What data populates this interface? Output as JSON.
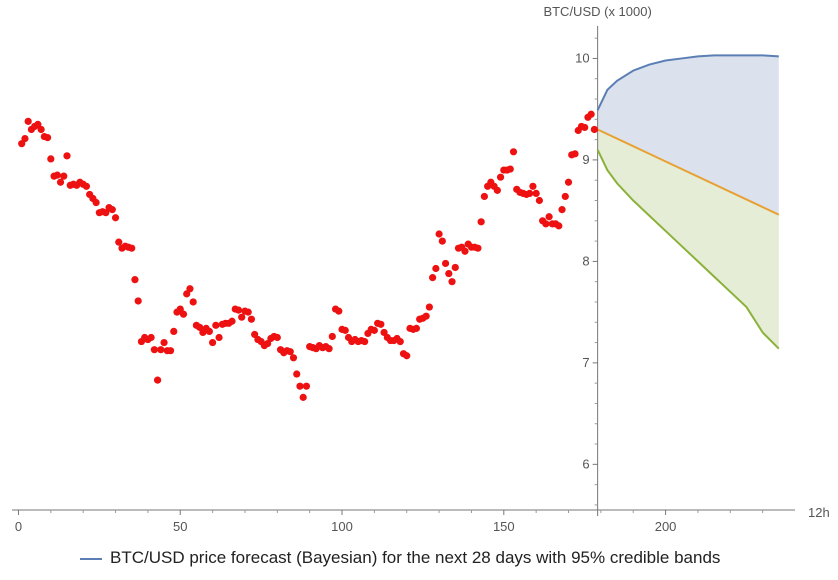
{
  "chart_data": {
    "type": "scatter",
    "title": "",
    "xlabel": "12h",
    "ylabel": "BTC/USD (x 1000)",
    "xlim": [
      -2,
      240
    ],
    "ylim": [
      5.55,
      10.3
    ],
    "grid": false,
    "legend_position": "bottom",
    "x_ticks": [
      0,
      50,
      100,
      150,
      200
    ],
    "y_ticks": [
      6,
      7,
      8,
      9,
      10
    ],
    "legend": [
      {
        "label": "BTC/USD price forecast (Bayesian) for the next 28 days with 95% credible bands",
        "color": "#5b7fb5"
      }
    ],
    "series": [
      {
        "name": "",
        "kind": "scatter",
        "color": "#ee1111",
        "points": [
          [
            1,
            9.16
          ],
          [
            2,
            9.21
          ],
          [
            3,
            9.38
          ],
          [
            4,
            9.3
          ],
          [
            5,
            9.33
          ],
          [
            6,
            9.35
          ],
          [
            7,
            9.3
          ],
          [
            8,
            9.23
          ],
          [
            9,
            9.22
          ],
          [
            10,
            9.01
          ],
          [
            11,
            8.84
          ],
          [
            12,
            8.85
          ],
          [
            13,
            8.78
          ],
          [
            14,
            8.84
          ],
          [
            15,
            9.04
          ],
          [
            16,
            8.75
          ],
          [
            17,
            8.76
          ],
          [
            18,
            8.75
          ],
          [
            19,
            8.78
          ],
          [
            20,
            8.76
          ],
          [
            21,
            8.74
          ],
          [
            22,
            8.66
          ],
          [
            23,
            8.62
          ],
          [
            24,
            8.58
          ],
          [
            25,
            8.48
          ],
          [
            26,
            8.49
          ],
          [
            27,
            8.48
          ],
          [
            28,
            8.53
          ],
          [
            29,
            8.51
          ],
          [
            30,
            8.43
          ],
          [
            31,
            8.19
          ],
          [
            32,
            8.13
          ],
          [
            33,
            8.15
          ],
          [
            34,
            8.14
          ],
          [
            35,
            8.13
          ],
          [
            36,
            7.82
          ],
          [
            37,
            7.61
          ],
          [
            38,
            7.21
          ],
          [
            39,
            7.25
          ],
          [
            40,
            7.23
          ],
          [
            41,
            7.25
          ],
          [
            42,
            7.13
          ],
          [
            43,
            6.83
          ],
          [
            44,
            7.13
          ],
          [
            45,
            7.2
          ],
          [
            46,
            7.12
          ],
          [
            47,
            7.12
          ],
          [
            48,
            7.31
          ],
          [
            49,
            7.5
          ],
          [
            50,
            7.53
          ],
          [
            51,
            7.48
          ],
          [
            52,
            7.68
          ],
          [
            53,
            7.73
          ],
          [
            54,
            7.6
          ],
          [
            55,
            7.37
          ],
          [
            56,
            7.35
          ],
          [
            57,
            7.3
          ],
          [
            58,
            7.34
          ],
          [
            59,
            7.31
          ],
          [
            60,
            7.2
          ],
          [
            61,
            7.37
          ],
          [
            62,
            7.25
          ],
          [
            63,
            7.38
          ],
          [
            64,
            7.39
          ],
          [
            65,
            7.39
          ],
          [
            66,
            7.41
          ],
          [
            67,
            7.53
          ],
          [
            68,
            7.52
          ],
          [
            69,
            7.45
          ],
          [
            70,
            7.51
          ],
          [
            71,
            7.5
          ],
          [
            72,
            7.43
          ],
          [
            73,
            7.28
          ],
          [
            74,
            7.23
          ],
          [
            75,
            7.21
          ],
          [
            76,
            7.17
          ],
          [
            77,
            7.19
          ],
          [
            78,
            7.24
          ],
          [
            79,
            7.26
          ],
          [
            80,
            7.25
          ],
          [
            81,
            7.13
          ],
          [
            82,
            7.1
          ],
          [
            83,
            7.12
          ],
          [
            84,
            7.11
          ],
          [
            85,
            7.05
          ],
          [
            86,
            6.89
          ],
          [
            87,
            6.77
          ],
          [
            88,
            6.66
          ],
          [
            89,
            6.77
          ],
          [
            90,
            7.16
          ],
          [
            91,
            7.15
          ],
          [
            92,
            7.14
          ],
          [
            93,
            7.17
          ],
          [
            94,
            7.15
          ],
          [
            95,
            7.16
          ],
          [
            96,
            7.14
          ],
          [
            97,
            7.26
          ],
          [
            98,
            7.53
          ],
          [
            99,
            7.51
          ],
          [
            100,
            7.33
          ],
          [
            101,
            7.32
          ],
          [
            102,
            7.25
          ],
          [
            103,
            7.21
          ],
          [
            104,
            7.23
          ],
          [
            105,
            7.21
          ],
          [
            106,
            7.22
          ],
          [
            107,
            7.21
          ],
          [
            108,
            7.29
          ],
          [
            109,
            7.33
          ],
          [
            110,
            7.32
          ],
          [
            111,
            7.39
          ],
          [
            112,
            7.38
          ],
          [
            113,
            7.3
          ],
          [
            114,
            7.25
          ],
          [
            115,
            7.22
          ],
          [
            116,
            7.22
          ],
          [
            117,
            7.24
          ],
          [
            118,
            7.21
          ],
          [
            119,
            7.09
          ],
          [
            120,
            7.07
          ],
          [
            121,
            7.34
          ],
          [
            122,
            7.33
          ],
          [
            123,
            7.34
          ],
          [
            124,
            7.43
          ],
          [
            125,
            7.44
          ],
          [
            126,
            7.46
          ],
          [
            127,
            7.55
          ],
          [
            128,
            7.84
          ],
          [
            129,
            7.93
          ],
          [
            130,
            8.27
          ],
          [
            131,
            8.2
          ],
          [
            132,
            7.98
          ],
          [
            133,
            7.88
          ],
          [
            134,
            7.8
          ],
          [
            135,
            7.94
          ],
          [
            136,
            8.13
          ],
          [
            137,
            8.14
          ],
          [
            138,
            8.1
          ],
          [
            139,
            8.17
          ],
          [
            140,
            8.14
          ],
          [
            141,
            8.14
          ],
          [
            142,
            8.13
          ],
          [
            143,
            8.39
          ],
          [
            144,
            8.64
          ],
          [
            145,
            8.74
          ],
          [
            146,
            8.78
          ],
          [
            147,
            8.74
          ],
          [
            148,
            8.7
          ],
          [
            149,
            8.83
          ],
          [
            150,
            8.9
          ],
          [
            151,
            8.9
          ],
          [
            152,
            8.91
          ],
          [
            153,
            9.08
          ],
          [
            154,
            8.71
          ],
          [
            155,
            8.68
          ],
          [
            156,
            8.67
          ],
          [
            157,
            8.66
          ],
          [
            158,
            8.67
          ],
          [
            159,
            8.74
          ],
          [
            160,
            8.67
          ],
          [
            161,
            8.6
          ],
          [
            162,
            8.4
          ],
          [
            163,
            8.37
          ],
          [
            164,
            8.44
          ],
          [
            165,
            8.37
          ],
          [
            166,
            8.37
          ],
          [
            167,
            8.35
          ],
          [
            168,
            8.51
          ],
          [
            169,
            8.64
          ],
          [
            170,
            8.78
          ],
          [
            171,
            9.05
          ],
          [
            172,
            9.06
          ],
          [
            173,
            9.29
          ],
          [
            174,
            9.33
          ],
          [
            175,
            9.32
          ],
          [
            176,
            9.42
          ],
          [
            177,
            9.45
          ],
          [
            178,
            9.3
          ]
        ]
      },
      {
        "name": "",
        "kind": "line",
        "color": "#5b7fb5",
        "x": [
          179,
          182,
          185,
          190,
          195,
          200,
          205,
          210,
          215,
          220,
          225,
          230,
          235
        ],
        "y": [
          9.49,
          9.69,
          9.78,
          9.88,
          9.94,
          9.98,
          10.0,
          10.02,
          10.03,
          10.03,
          10.03,
          10.03,
          10.02
        ]
      },
      {
        "name": "",
        "kind": "line",
        "color": "#e8a033",
        "x": [
          179,
          235
        ],
        "y": [
          9.3,
          8.46
        ]
      },
      {
        "name": "",
        "kind": "line",
        "color": "#8ab13a",
        "x": [
          179,
          182,
          185,
          190,
          195,
          200,
          205,
          210,
          215,
          220,
          225,
          230,
          235
        ],
        "y": [
          9.1,
          8.9,
          8.77,
          8.6,
          8.45,
          8.3,
          8.15,
          8.0,
          7.85,
          7.7,
          7.55,
          7.3,
          7.14
        ]
      }
    ]
  }
}
